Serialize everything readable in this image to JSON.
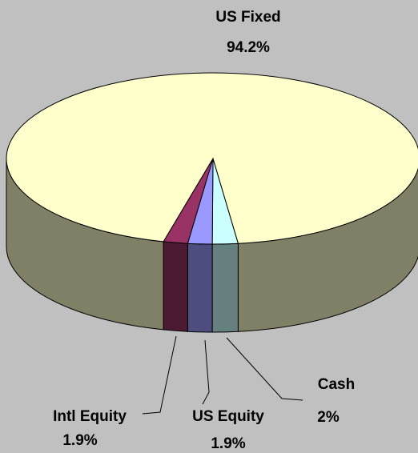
{
  "chart_data": {
    "type": "pie3d",
    "categories": [
      "Cash",
      "US Equity",
      "Intl Equity",
      "US Fixed"
    ],
    "values": [
      2,
      1.9,
      1.9,
      94.2
    ],
    "value_labels": [
      "2%",
      "1.9%",
      "1.9%",
      "94.2%"
    ],
    "colors": [
      "#ccffff",
      "#9999ff",
      "#993366",
      "#ffffcc"
    ]
  }
}
